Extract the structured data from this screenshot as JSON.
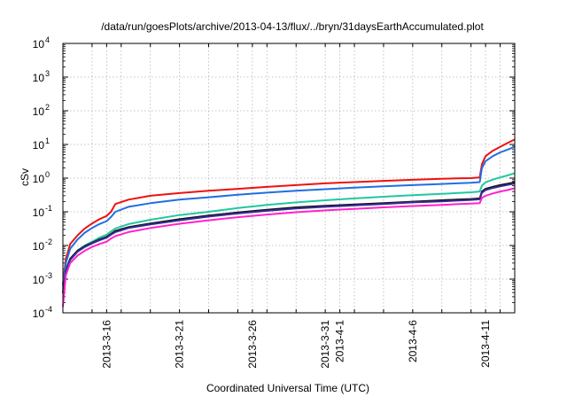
{
  "chart_data": {
    "type": "line",
    "title": "/data/run/goesPlots/archive/2013-04-13/flux/../bryn/31daysEarthAccumulated.plot",
    "xlabel": "Coordinated Universal Time (UTC)",
    "ylabel": "cSv",
    "y_scale": "log",
    "ylim": [
      0.0001,
      10000
    ],
    "xlim_days": [
      0,
      31
    ],
    "grid": true,
    "y_ticks": [
      {
        "value": 0.0001,
        "base": "10",
        "exp": "-4"
      },
      {
        "value": 0.001,
        "base": "10",
        "exp": "-3"
      },
      {
        "value": 0.01,
        "base": "10",
        "exp": "-2"
      },
      {
        "value": 0.1,
        "base": "10",
        "exp": "-1"
      },
      {
        "value": 1,
        "base": "10",
        "exp": "0"
      },
      {
        "value": 10,
        "base": "10",
        "exp": "1"
      },
      {
        "value": 100,
        "base": "10",
        "exp": "2"
      },
      {
        "value": 1000,
        "base": "10",
        "exp": "3"
      },
      {
        "value": 10000,
        "base": "10",
        "exp": "4"
      }
    ],
    "x_ticks": [
      {
        "day": 3,
        "label": "2013-3-16"
      },
      {
        "day": 8,
        "label": "2013-3-21"
      },
      {
        "day": 13,
        "label": "2013-3-26"
      },
      {
        "day": 18,
        "label": "2013-3-31"
      },
      {
        "day": 19,
        "label": "2013-4-1"
      },
      {
        "day": 24,
        "label": "2013-4-6"
      },
      {
        "day": 29,
        "label": "2013-4-11"
      }
    ],
    "x_grid_days": [
      0,
      2,
      3,
      4,
      6,
      8,
      10,
      12,
      13,
      14,
      16,
      18,
      19,
      20,
      22,
      24,
      26,
      28,
      29,
      30
    ],
    "x_days": [
      0,
      0.2,
      0.5,
      1,
      1.5,
      2,
      2.5,
      3,
      3.3,
      3.6,
      4.5,
      6,
      8,
      10,
      12,
      14,
      16,
      18,
      20,
      22,
      24,
      26,
      27,
      28,
      28.6,
      28.75,
      29,
      29.5,
      30,
      30.5,
      31
    ],
    "series": [
      {
        "name": "red",
        "color": "#ee1111",
        "values": [
          0.0007,
          0.004,
          0.011,
          0.02,
          0.032,
          0.045,
          0.06,
          0.075,
          0.1,
          0.17,
          0.23,
          0.3,
          0.36,
          0.42,
          0.48,
          0.55,
          0.62,
          0.7,
          0.76,
          0.83,
          0.89,
          0.95,
          0.98,
          1.0,
          1.05,
          2.6,
          4.5,
          6.5,
          8.5,
          11.0,
          14.0
        ]
      },
      {
        "name": "blue",
        "color": "#1f6ee6",
        "values": [
          0.0006,
          0.003,
          0.008,
          0.015,
          0.024,
          0.033,
          0.043,
          0.053,
          0.07,
          0.1,
          0.14,
          0.18,
          0.23,
          0.27,
          0.32,
          0.37,
          0.42,
          0.47,
          0.52,
          0.57,
          0.62,
          0.67,
          0.7,
          0.73,
          0.76,
          2.0,
          3.2,
          4.5,
          5.8,
          7.0,
          8.5
        ]
      },
      {
        "name": "teal",
        "color": "#20c8a0",
        "values": [
          0.0005,
          0.002,
          0.004,
          0.007,
          0.01,
          0.013,
          0.017,
          0.021,
          0.026,
          0.032,
          0.043,
          0.058,
          0.08,
          0.1,
          0.13,
          0.16,
          0.19,
          0.22,
          0.25,
          0.28,
          0.31,
          0.34,
          0.36,
          0.38,
          0.4,
          0.6,
          0.75,
          0.9,
          1.05,
          1.2,
          1.4
        ]
      },
      {
        "name": "black",
        "color": "#111111",
        "values": [
          0.0004,
          0.0018,
          0.004,
          0.007,
          0.0095,
          0.012,
          0.015,
          0.018,
          0.022,
          0.027,
          0.035,
          0.045,
          0.06,
          0.077,
          0.095,
          0.115,
          0.135,
          0.15,
          0.165,
          0.18,
          0.2,
          0.22,
          0.23,
          0.24,
          0.25,
          0.4,
          0.48,
          0.55,
          0.62,
          0.68,
          0.75
        ]
      },
      {
        "name": "navy",
        "color": "#3a2a9a",
        "values": [
          0.00038,
          0.0017,
          0.0037,
          0.0065,
          0.009,
          0.0115,
          0.0142,
          0.017,
          0.021,
          0.025,
          0.033,
          0.042,
          0.056,
          0.072,
          0.089,
          0.107,
          0.125,
          0.14,
          0.155,
          0.17,
          0.19,
          0.205,
          0.215,
          0.225,
          0.235,
          0.37,
          0.44,
          0.51,
          0.57,
          0.63,
          0.69
        ]
      },
      {
        "name": "magenta",
        "color": "#ff22cc",
        "values": [
          0.00015,
          0.0013,
          0.003,
          0.005,
          0.007,
          0.009,
          0.011,
          0.013,
          0.016,
          0.019,
          0.025,
          0.033,
          0.044,
          0.056,
          0.069,
          0.083,
          0.097,
          0.11,
          0.122,
          0.135,
          0.148,
          0.16,
          0.168,
          0.175,
          0.18,
          0.26,
          0.3,
          0.35,
          0.4,
          0.44,
          0.5
        ]
      }
    ]
  }
}
